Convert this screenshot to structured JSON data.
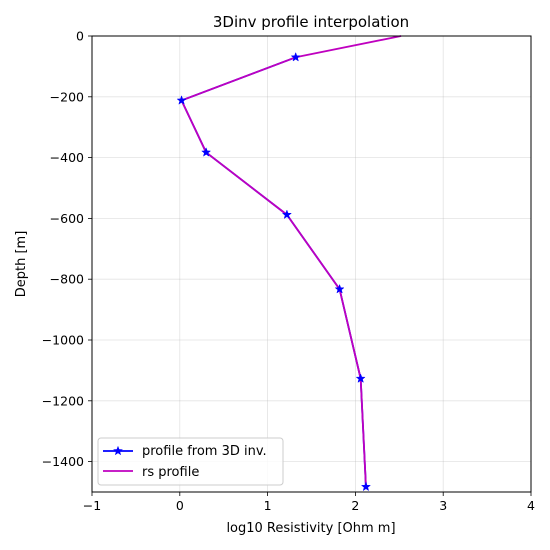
{
  "chart_data": {
    "type": "line",
    "title": "3Dinv profile interpolation",
    "xlabel": "log10 Resistivity [Ohm m]",
    "ylabel": "Depth [m]",
    "xlim": [
      -1,
      4
    ],
    "ylim": [
      -1500,
      0
    ],
    "xticks": [
      -1,
      0,
      1,
      2,
      3,
      4
    ],
    "yticks": [
      0,
      -200,
      -400,
      -600,
      -800,
      -1000,
      -1200,
      -1400
    ],
    "xtick_labels": [
      "−1",
      "0",
      "1",
      "2",
      "3",
      "4"
    ],
    "ytick_labels": [
      "0",
      "−200",
      "−400",
      "−600",
      "−800",
      "−1000",
      "−1200",
      "−1400"
    ],
    "grid": true,
    "legend_position": "lower-left",
    "series": [
      {
        "name": "profile from 3D inv.",
        "color": "#0000ff",
        "marker": "star",
        "points": [
          {
            "x": 1.32,
            "y": -70
          },
          {
            "x": 0.02,
            "y": -212
          },
          {
            "x": 0.3,
            "y": -383
          },
          {
            "x": 1.22,
            "y": -588
          },
          {
            "x": 1.82,
            "y": -833
          },
          {
            "x": 2.06,
            "y": -1127
          },
          {
            "x": 2.12,
            "y": -1483
          }
        ]
      },
      {
        "name": "rs profile",
        "color": "#bf00bf",
        "marker": "none",
        "points": [
          {
            "x": 2.52,
            "y": 0
          },
          {
            "x": 1.32,
            "y": -70
          },
          {
            "x": 0.02,
            "y": -212
          },
          {
            "x": 0.3,
            "y": -383
          },
          {
            "x": 1.22,
            "y": -588
          },
          {
            "x": 1.82,
            "y": -833
          },
          {
            "x": 2.06,
            "y": -1127
          },
          {
            "x": 2.12,
            "y": -1483
          }
        ]
      }
    ]
  }
}
